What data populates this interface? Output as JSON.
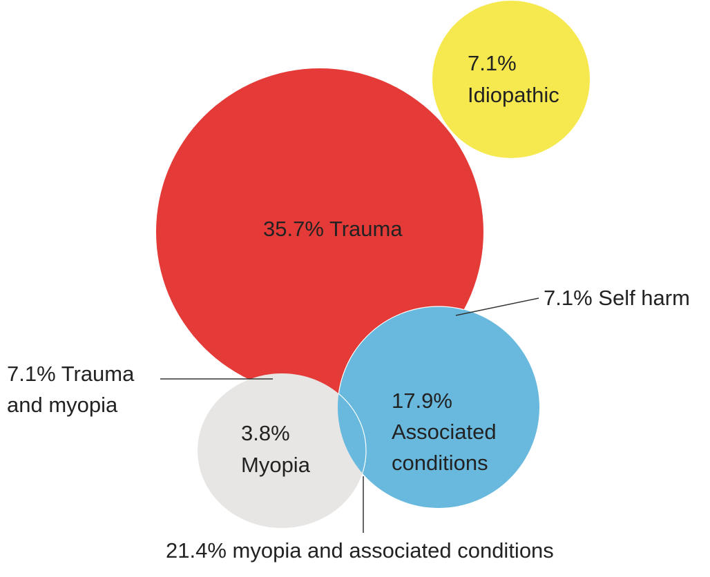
{
  "colors": {
    "trauma": "#e53b38",
    "idiopathic": "#f6e94f",
    "associated": "#68b9dd",
    "myopia": "#e8e6e4",
    "text": "#222222",
    "leader_line": "#333333"
  },
  "regions": {
    "idiopathic": {
      "percent": "7.1%",
      "label": "Idiopathic"
    },
    "trauma": {
      "label": "35.7% Trauma"
    },
    "associated": {
      "percent": "17.9%",
      "line1": "Associated",
      "line2": "conditions"
    },
    "myopia": {
      "percent": "3.8%",
      "label": "Myopia"
    }
  },
  "callouts": {
    "self_harm": "7.1% Self harm",
    "trauma_myopia_line1": "7.1% Trauma",
    "trauma_myopia_line2": "and myopia",
    "myopia_associated": "21.4% myopia and associated conditions"
  }
}
